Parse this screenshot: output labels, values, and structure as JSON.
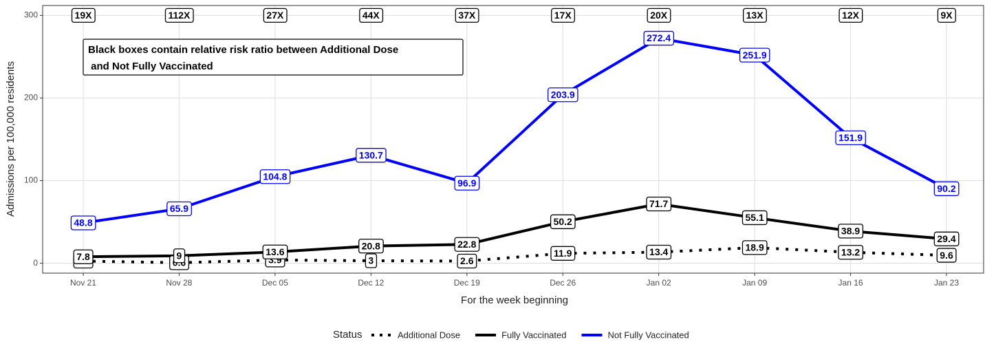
{
  "chart_data": {
    "type": "line",
    "categories": [
      "Nov 21",
      "Nov 28",
      "Dec 05",
      "Dec 12",
      "Dec 19",
      "Dec 26",
      "Jan 02",
      "Jan 09",
      "Jan 16",
      "Jan 23"
    ],
    "series": [
      {
        "name": "Additional Dose",
        "color": "#000000",
        "line_style": "dotted",
        "values": [
          2.6,
          0.6,
          3.9,
          3,
          2.6,
          11.9,
          13.4,
          18.9,
          13.2,
          9.6
        ]
      },
      {
        "name": "Fully Vaccinated",
        "color": "#000000",
        "line_style": "solid",
        "values": [
          7.8,
          9,
          13.6,
          20.8,
          22.8,
          50.2,
          71.7,
          55.1,
          38.9,
          29.4
        ]
      },
      {
        "name": "Not Fully Vaccinated",
        "color": "#0000ff",
        "line_style": "solid",
        "values": [
          48.8,
          65.9,
          104.8,
          130.7,
          96.9,
          203.9,
          272.4,
          251.9,
          151.9,
          90.2
        ]
      }
    ],
    "ratio_labels": [
      "19X",
      "112X",
      "27X",
      "44X",
      "37X",
      "17X",
      "20X",
      "13X",
      "12X",
      "9X"
    ],
    "ratio_label_y": 300,
    "note": [
      "Black boxes contain relative risk ratio between Additional Dose",
      " and Not Fully Vaccinated"
    ],
    "x_label": "For the week beginning",
    "y_label": "Admissions per 100,000 residents",
    "legend_title": "Status",
    "legend_position": "bottom",
    "ylim": [
      -12,
      312
    ],
    "yticks": [
      0,
      100,
      200,
      300
    ],
    "grid": true
  }
}
